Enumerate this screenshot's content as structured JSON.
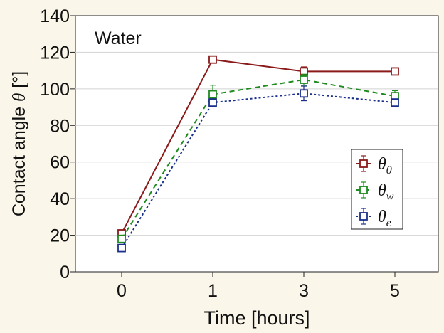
{
  "chart_data": {
    "type": "line",
    "title": "",
    "annotation": "Water",
    "xlabel": "Time [hours]",
    "ylabel": "Contact angle",
    "ylabel_symbol": "θ",
    "ylabel_unit": "[°]",
    "x_tick_labels": [
      "0",
      "1",
      "3",
      "5"
    ],
    "y_ticks": [
      0,
      20,
      40,
      60,
      80,
      100,
      120,
      140
    ],
    "ylim": [
      0,
      140
    ],
    "grid": "horizontal",
    "legend_position": "lower-right",
    "series": [
      {
        "name": "θ0",
        "symbol": "θ",
        "subscript": "0",
        "color": "#8b1a1a",
        "line_style": "solid",
        "marker": "open-square",
        "values": [
          21,
          116,
          109.5,
          109.5
        ],
        "error": [
          1,
          1.5,
          2.5,
          1.5
        ]
      },
      {
        "name": "θw",
        "symbol": "θ",
        "subscript": "w",
        "color": "#1f8b1f",
        "line_style": "dashed",
        "marker": "open-square",
        "values": [
          18,
          97,
          105,
          96
        ],
        "error": [
          1.5,
          5,
          3,
          3
        ]
      },
      {
        "name": "θe",
        "symbol": "θ",
        "subscript": "e",
        "color": "#1a2f8b",
        "line_style": "dotted",
        "marker": "open-square",
        "values": [
          13,
          92.5,
          97.5,
          92.5
        ],
        "error": [
          1,
          2,
          4,
          2
        ]
      }
    ]
  }
}
